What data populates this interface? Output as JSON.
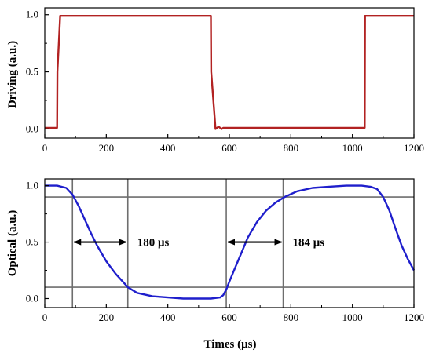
{
  "chart_data": [
    {
      "type": "line",
      "ylabel": "Driving (a.u.)",
      "xlim": [
        0,
        1200
      ],
      "ylim": [
        -0.08,
        1.06
      ],
      "xticks": [
        0,
        200,
        400,
        600,
        800,
        1000,
        1200
      ],
      "xtick_labels": [
        "0",
        "200",
        "400",
        "600",
        "800",
        "1000",
        "1200"
      ],
      "yticks": [
        0.0,
        0.5,
        1.0
      ],
      "ytick_labels": [
        "0.0",
        "0.5",
        "1.0"
      ],
      "grid": false,
      "series": [
        {
          "color": "#b22222",
          "x": [
            0,
            40,
            41,
            50,
            51,
            540,
            541,
            555,
            565,
            575,
            580,
            1040,
            1041,
            1200
          ],
          "y": [
            0.01,
            0.01,
            0.5,
            0.99,
            0.99,
            0.99,
            0.5,
            0.0,
            0.02,
            0.0,
            0.01,
            0.01,
            0.99,
            0.99
          ]
        }
      ]
    },
    {
      "type": "line",
      "xlabel": "Times (μs)",
      "ylabel": "Optical (a.u.)",
      "xlim": [
        0,
        1200
      ],
      "ylim": [
        -0.08,
        1.06
      ],
      "xticks": [
        0,
        200,
        400,
        600,
        800,
        1000,
        1200
      ],
      "xtick_labels": [
        "0",
        "200",
        "400",
        "600",
        "800",
        "1000",
        "1200"
      ],
      "yticks": [
        0.0,
        0.5,
        1.0
      ],
      "ytick_labels": [
        "0.0",
        "0.5",
        "1.0"
      ],
      "grid": false,
      "series": [
        {
          "color": "#1f1fcc",
          "x": [
            0,
            40,
            70,
            90,
            110,
            130,
            150,
            170,
            200,
            230,
            270,
            300,
            350,
            400,
            450,
            500,
            540,
            570,
            580,
            590,
            600,
            620,
            640,
            660,
            690,
            720,
            750,
            780,
            820,
            870,
            920,
            980,
            1030,
            1060,
            1080,
            1100,
            1120,
            1140,
            1160,
            1180,
            1200
          ],
          "y": [
            1.0,
            1.0,
            0.98,
            0.92,
            0.82,
            0.7,
            0.58,
            0.47,
            0.33,
            0.22,
            0.1,
            0.05,
            0.02,
            0.01,
            0.0,
            0.0,
            0.0,
            0.01,
            0.03,
            0.08,
            0.15,
            0.28,
            0.41,
            0.54,
            0.68,
            0.78,
            0.85,
            0.9,
            0.95,
            0.98,
            0.99,
            1.0,
            1.0,
            0.99,
            0.97,
            0.9,
            0.78,
            0.62,
            0.47,
            0.35,
            0.25
          ]
        }
      ],
      "reference_lines": {
        "vertical_x": [
          90,
          270,
          590,
          775
        ],
        "horizontal_y": [
          0.1,
          0.9
        ]
      },
      "annotations": [
        {
          "text": "180 μs",
          "from_x": 90,
          "to_x": 270,
          "y": 0.5
        },
        {
          "text": "184 μs",
          "from_x": 590,
          "to_x": 775,
          "y": 0.5
        }
      ]
    }
  ]
}
